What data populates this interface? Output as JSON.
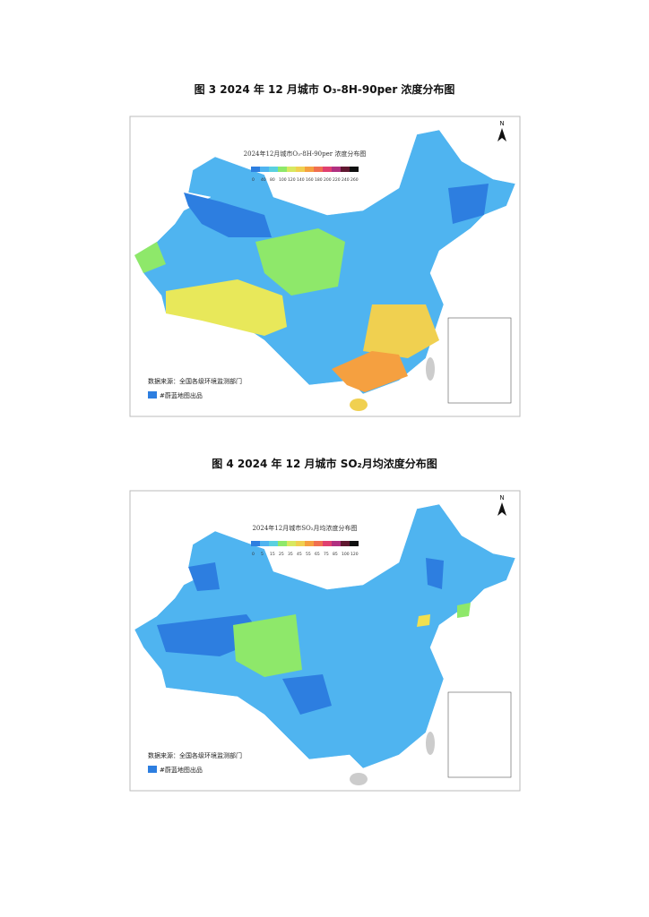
{
  "figures": [
    {
      "caption": "图 3 2024 年 12 月城市 O₃-8H-90per 浓度分布图",
      "map_title": "2024年12月城市O₃-8H-90per 浓度分布图",
      "legend_labels": [
        "0",
        "40",
        "80",
        "100",
        "120",
        "140",
        "160",
        "180",
        "200",
        "220",
        "240",
        "260"
      ],
      "legend_colors": [
        "#2d7ee0",
        "#4fb4f0",
        "#5ad0e0",
        "#8ee86a",
        "#d8e860",
        "#f0d050",
        "#f5a040",
        "#f07050",
        "#e04070",
        "#b03080",
        "#601830",
        "#101010"
      ],
      "source": "数据来源：全国各级环境监测部门",
      "credit": "#蔚蓝地图出品",
      "north": "N"
    },
    {
      "caption": "图 4 2024 年 12 月城市 SO₂月均浓度分布图",
      "map_title": "2024年12月城市SO₂月均浓度分布图",
      "legend_labels": [
        "0",
        "5",
        "15",
        "25",
        "35",
        "45",
        "55",
        "65",
        "75",
        "85",
        "100",
        "120"
      ],
      "legend_colors": [
        "#2d7ee0",
        "#4fb4f0",
        "#5ad0e0",
        "#8ee86a",
        "#d8e860",
        "#f0d050",
        "#f5a040",
        "#f07050",
        "#e04070",
        "#b03080",
        "#601830",
        "#101010"
      ],
      "source": "数据来源：全国各级环境监测部门",
      "credit": "#蔚蓝地图出品",
      "north": "N"
    }
  ]
}
